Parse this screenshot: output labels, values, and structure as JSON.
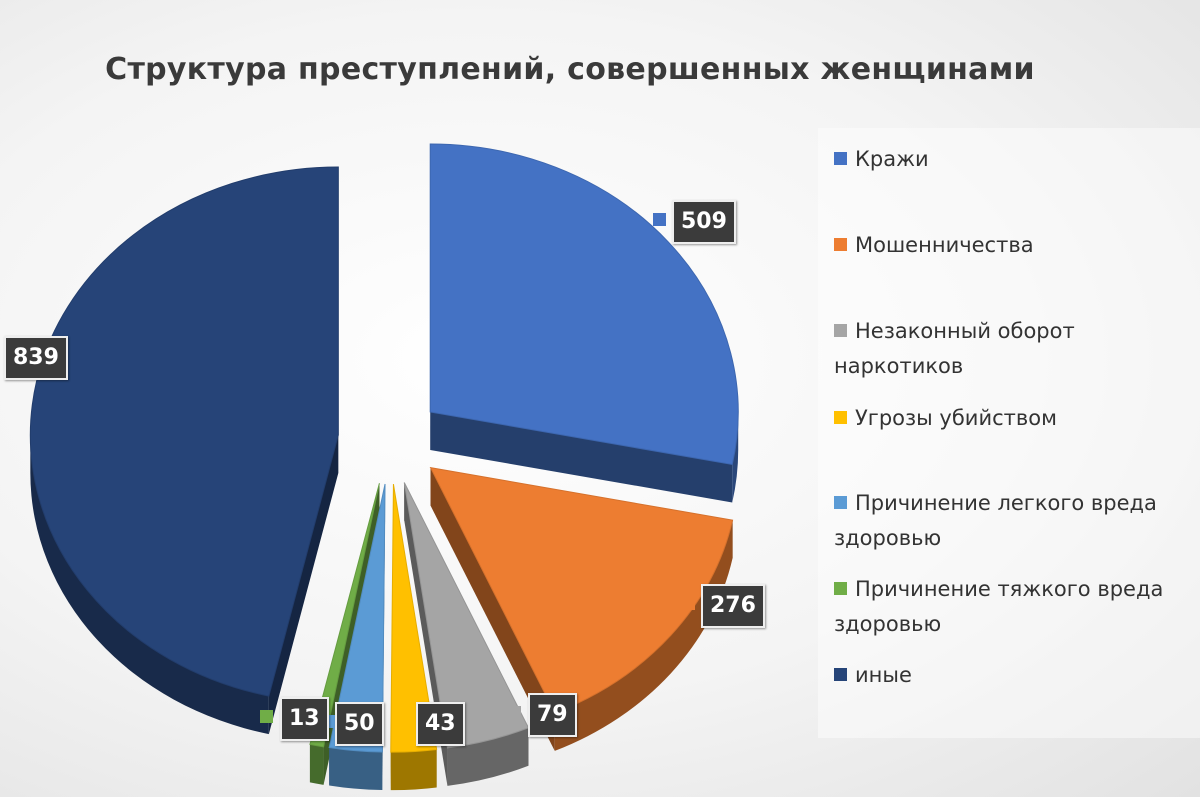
{
  "chart_data": {
    "type": "pie",
    "title": "Структура преступлений, совершенных женщинами",
    "legend_position": "right",
    "categories": [
      "Кражи",
      "Мошенничества",
      "Незаконный оборот наркотиков",
      "Угрозы убийством",
      "Причинение легкого вреда здоровью",
      "Причинение тяжкого вреда здоровью",
      "иные"
    ],
    "values": [
      509,
      276,
      79,
      43,
      50,
      13,
      839
    ],
    "value_labels": [
      "509",
      "276",
      "79",
      "43",
      "50",
      "13",
      "839"
    ],
    "colors": [
      "#4472c4",
      "#ed7d31",
      "#a5a5a5",
      "#ffc000",
      "#5b9bd5",
      "#70ad47",
      "#264478"
    ]
  }
}
